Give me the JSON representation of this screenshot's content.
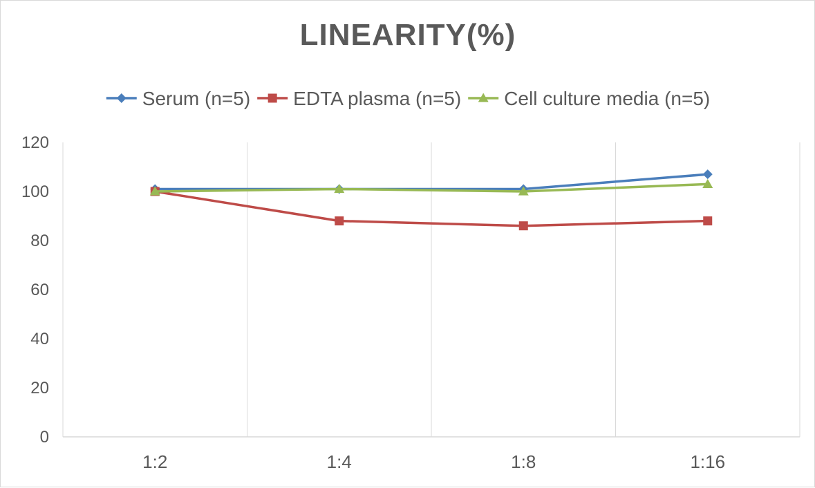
{
  "chart_data": {
    "type": "line",
    "title": "LINEARITY(%)",
    "categories": [
      "1:2",
      "1:4",
      "1:8",
      "1:16"
    ],
    "series": [
      {
        "name": "Serum (n=5)",
        "values": [
          101,
          101,
          101,
          107
        ],
        "color": "#4a7ebb",
        "marker": "diamond"
      },
      {
        "name": "EDTA plasma (n=5)",
        "values": [
          100,
          88,
          86,
          88
        ],
        "color": "#be4b48",
        "marker": "square"
      },
      {
        "name": "Cell culture media (n=5)",
        "values": [
          100,
          101,
          100,
          103
        ],
        "color": "#98b954",
        "marker": "triangle"
      }
    ],
    "ylim": [
      0,
      120
    ],
    "yticks": [
      "0",
      "20",
      "40",
      "60",
      "80",
      "100",
      "120"
    ],
    "legend_position": "top",
    "grid": "vertical"
  }
}
